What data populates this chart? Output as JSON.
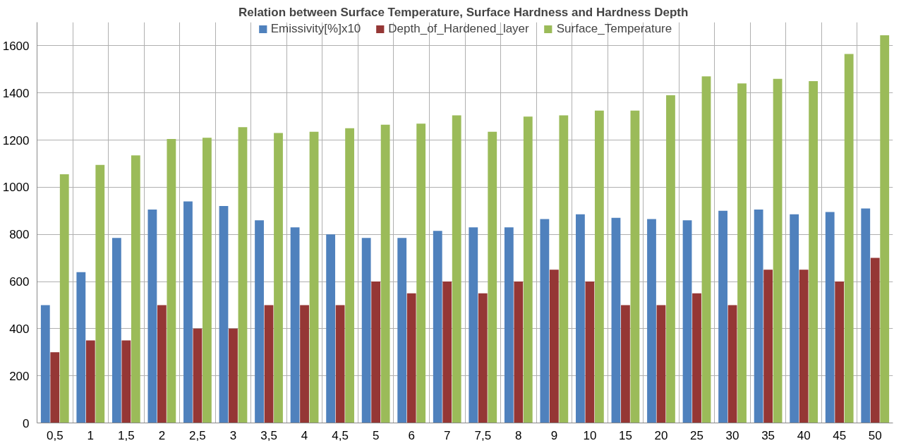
{
  "chart_data": {
    "type": "bar",
    "title": "Relation between Surface Temperature, Surface Hardness and Hardness  Depth",
    "categories": [
      "0,5",
      "1",
      "1,5",
      "2",
      "2,5",
      "3",
      "3,5",
      "4",
      "4,5",
      "5",
      "6",
      "7",
      "7,5",
      "8",
      "9",
      "10",
      "15",
      "20",
      "25",
      "30",
      "35",
      "40",
      "45",
      "50"
    ],
    "series": [
      {
        "name": "Emissivity[%]x10",
        "color": "#4f81bd",
        "values": [
          500,
          640,
          785,
          905,
          940,
          920,
          860,
          830,
          800,
          785,
          785,
          815,
          830,
          830,
          865,
          885,
          870,
          865,
          860,
          900,
          905,
          885,
          895,
          910
        ]
      },
      {
        "name": "Depth_of_Hardened_layer",
        "color": "#953735",
        "values": [
          300,
          350,
          350,
          500,
          400,
          400,
          500,
          500,
          500,
          600,
          550,
          600,
          550,
          600,
          650,
          600,
          500,
          500,
          550,
          500,
          650,
          650,
          600,
          700
        ]
      },
      {
        "name": "Surface_Temperature",
        "color": "#9bbb59",
        "values": [
          1055,
          1095,
          1135,
          1205,
          1210,
          1255,
          1230,
          1235,
          1250,
          1265,
          1270,
          1305,
          1235,
          1300,
          1305,
          1325,
          1325,
          1390,
          1470,
          1440,
          1460,
          1450,
          1565,
          1645
        ]
      }
    ],
    "ylim": [
      0,
      1700
    ],
    "yticks": [
      0,
      200,
      400,
      600,
      800,
      1000,
      1200,
      1400,
      1600
    ],
    "grid": true,
    "legend": "top"
  }
}
